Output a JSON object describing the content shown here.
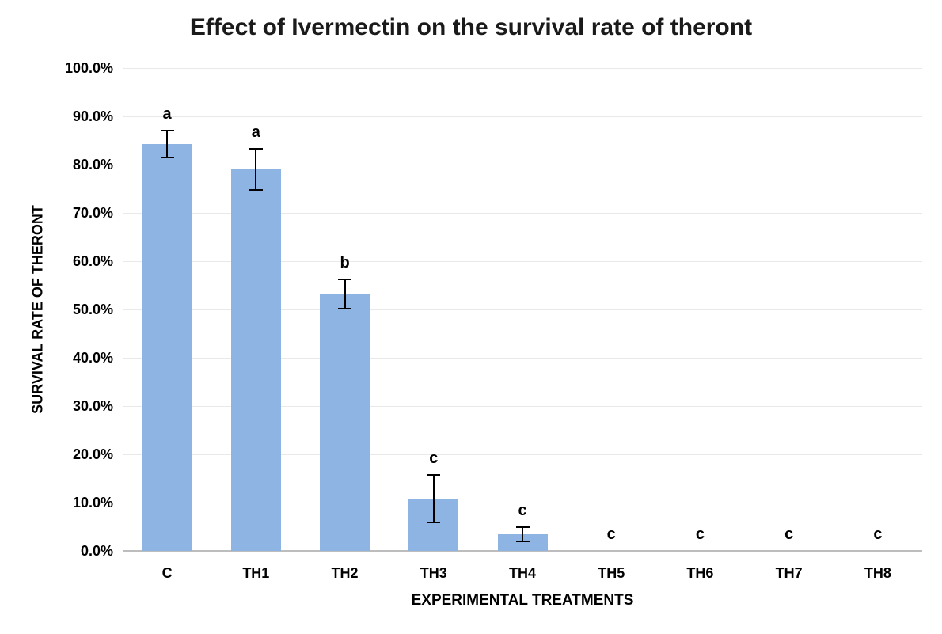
{
  "chart_data": {
    "type": "bar",
    "title": "Effect of Ivermectin on the survival rate of theront",
    "xlabel": "EXPERIMENTAL TREATMENTS",
    "ylabel": "SURVIVAL RATE OF THERONT",
    "categories": [
      "C",
      "TH1",
      "TH2",
      "TH3",
      "TH4",
      "TH5",
      "TH6",
      "TH7",
      "TH8"
    ],
    "values": [
      84.3,
      79.0,
      53.2,
      10.8,
      3.4,
      0,
      0,
      0,
      0
    ],
    "error_bars": [
      2.8,
      4.3,
      3.0,
      4.9,
      1.5,
      0,
      0,
      0,
      0
    ],
    "significance_letters": [
      "a",
      "a",
      "b",
      "c",
      "c",
      "c",
      "c",
      "c",
      "c"
    ],
    "y_tick_labels": [
      "100.0%",
      "90.0%",
      "80.0%",
      "70.0%",
      "60.0%",
      "50.0%",
      "40.0%",
      "30.0%",
      "20.0%",
      "10.0%",
      "0.0%"
    ],
    "ylim": [
      0,
      100
    ],
    "y_tick_step": 10,
    "grid": true,
    "legend": "none",
    "colors": {
      "bar_fill": "#8DB4E2",
      "gridline": "#E9E9E9",
      "axis_line": "#BDBDBD",
      "text": "#000000",
      "title_text": "#1a1a1a"
    }
  }
}
